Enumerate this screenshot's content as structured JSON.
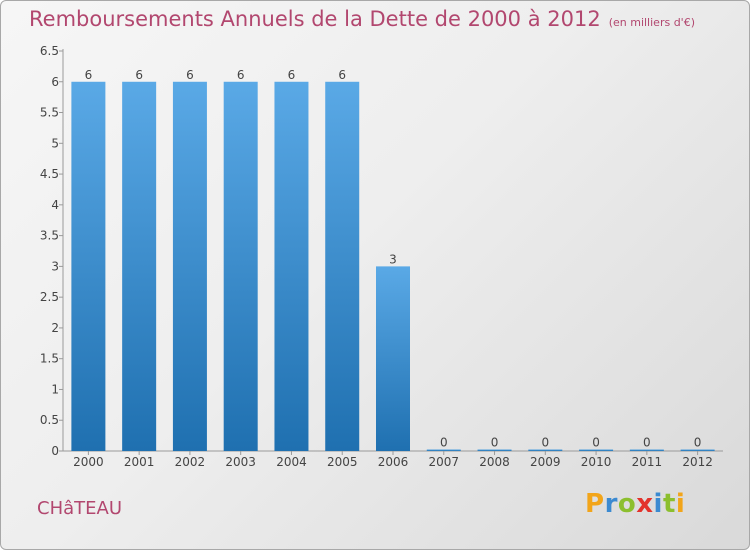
{
  "title": "Remboursements Annuels de la Dette de 2000 à 2012",
  "unit_note": "(en milliers d'€)",
  "commune": "CHâTEAU",
  "logo": {
    "letters": [
      {
        "ch": "P",
        "color": "#f2a51a"
      },
      {
        "ch": "r",
        "color": "#3b8ad1"
      },
      {
        "ch": "o",
        "color": "#8cbf2e"
      },
      {
        "ch": "x",
        "color": "#e3322b"
      },
      {
        "ch": "i",
        "color": "#3b8ad1"
      },
      {
        "ch": "t",
        "color": "#8cbf2e"
      },
      {
        "ch": "i",
        "color": "#f2a51a"
      }
    ]
  },
  "colors": {
    "title": "#b2476f",
    "bar_top": "#5aa9e6",
    "bar_bottom": "#1f70b0"
  },
  "chart_data": {
    "type": "bar",
    "title": "Remboursements Annuels de la Dette de 2000 à 2012",
    "subtitle": "(en milliers d'€)",
    "xlabel": "",
    "ylabel": "",
    "categories": [
      "2000",
      "2001",
      "2002",
      "2003",
      "2004",
      "2005",
      "2006",
      "2007",
      "2008",
      "2009",
      "2010",
      "2011",
      "2012"
    ],
    "values": [
      6,
      6,
      6,
      6,
      6,
      6,
      3,
      0,
      0,
      0,
      0,
      0,
      0
    ],
    "data_labels": [
      "6",
      "6",
      "6",
      "6",
      "6",
      "6",
      "3",
      "0",
      "0",
      "0",
      "0",
      "0",
      "0"
    ],
    "ylim": [
      0,
      6.5
    ],
    "yticks": [
      0,
      0.5,
      1,
      1.5,
      2,
      2.5,
      3,
      3.5,
      4,
      4.5,
      5,
      5.5,
      6,
      6.5
    ],
    "ytick_labels": [
      "0",
      "0.5",
      "1",
      "1.5",
      "2",
      "2.5",
      "3",
      "3.5",
      "4",
      "4.5",
      "5",
      "5.5",
      "6",
      "6.5"
    ],
    "grid": false,
    "legend": "none"
  }
}
